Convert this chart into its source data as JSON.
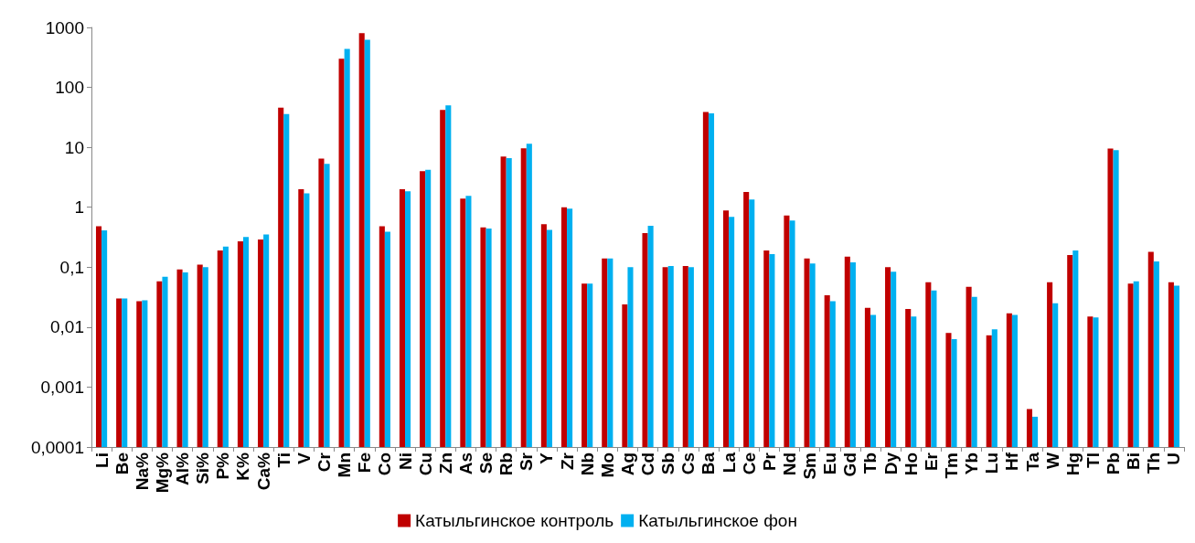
{
  "chart_data": {
    "type": "bar",
    "categories": [
      "Li",
      "Be",
      "Na%",
      "Mg%",
      "Al%",
      "Si%",
      "P%",
      "K%",
      "Ca%",
      "Ti",
      "V",
      "Cr",
      "Mn",
      "Fe",
      "Co",
      "Ni",
      "Cu",
      "Zn",
      "As",
      "Se",
      "Rb",
      "Sr",
      "Y",
      "Zr",
      "Nb",
      "Mo",
      "Ag",
      "Cd",
      "Sb",
      "Cs",
      "Ba",
      "La",
      "Ce",
      "Pr",
      "Nd",
      "Sm",
      "Eu",
      "Gd",
      "Tb",
      "Dy",
      "Ho",
      "Er",
      "Tm",
      "Yb",
      "Lu",
      "Hf",
      "Ta",
      "W",
      "Hg",
      "Tl",
      "Pb",
      "Bi",
      "Th",
      "U"
    ],
    "series": [
      {
        "name": "Катыльгинское контроль",
        "color": "#c00000",
        "values": [
          0.48,
          0.03,
          0.027,
          0.058,
          0.092,
          0.11,
          0.19,
          0.27,
          0.29,
          46,
          2.0,
          6.5,
          300,
          800,
          0.48,
          2.0,
          4.0,
          42,
          1.4,
          0.46,
          7.0,
          9.6,
          0.52,
          1.0,
          0.053,
          0.14,
          0.024,
          0.37,
          0.1,
          0.105,
          39,
          0.88,
          1.8,
          0.19,
          0.73,
          0.14,
          0.034,
          0.15,
          0.021,
          0.1,
          0.02,
          0.056,
          0.008,
          0.047,
          0.0073,
          0.017,
          0.00043,
          0.056,
          0.16,
          0.015,
          9.5,
          0.053,
          0.18,
          0.056
        ]
      },
      {
        "name": "Катыльгинское фон",
        "color": "#00b0f0",
        "values": [
          0.41,
          0.03,
          0.028,
          0.069,
          0.082,
          0.1,
          0.22,
          0.32,
          0.35,
          36,
          1.7,
          5.3,
          440,
          620,
          0.39,
          1.85,
          4.2,
          50,
          1.55,
          0.44,
          6.6,
          11.5,
          0.42,
          0.95,
          0.053,
          0.14,
          0.1,
          0.49,
          0.105,
          0.1,
          37,
          0.69,
          1.35,
          0.165,
          0.6,
          0.115,
          0.027,
          0.12,
          0.016,
          0.084,
          0.015,
          0.041,
          0.0063,
          0.032,
          0.0092,
          0.016,
          0.00032,
          0.025,
          0.19,
          0.0145,
          9.0,
          0.058,
          0.125,
          0.049
        ]
      }
    ],
    "log": "y",
    "ylim": [
      0.0001,
      1000
    ],
    "yticks": [
      {
        "value": 0.0001,
        "label": "0,0001"
      },
      {
        "value": 0.001,
        "label": "0,001"
      },
      {
        "value": 0.01,
        "label": "0,01"
      },
      {
        "value": 0.1,
        "label": "0,1"
      },
      1,
      10,
      100,
      1000
    ],
    "grid": false,
    "legend": "bottom"
  }
}
